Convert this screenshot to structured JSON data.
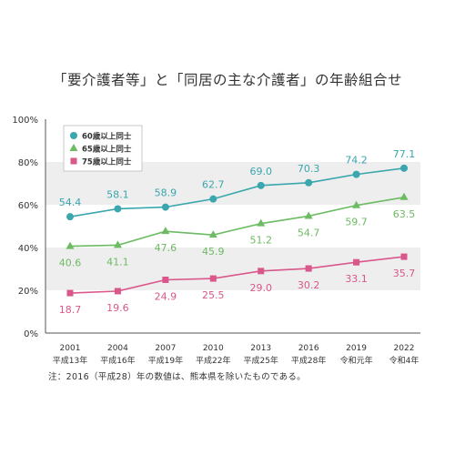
{
  "title": "「要介護者等」と「同居の主な介護者」の年齢組合せ",
  "note": "注：2016（平成28）年の数値は、熊本県を除いたものである。",
  "colors": {
    "teal": "#3aa6ad",
    "green": "#6dbb63",
    "pink": "#d9578a",
    "band": "#eeeeee"
  },
  "chart_data": {
    "type": "line",
    "x": [
      "2001",
      "2004",
      "2007",
      "2010",
      "2013",
      "2016",
      "2019",
      "2022"
    ],
    "x_sub": [
      "平成13年",
      "平成16年",
      "平成19年",
      "平成22年",
      "平成25年",
      "平成28年",
      "令和元年",
      "令和4年"
    ],
    "ylim": [
      0,
      100
    ],
    "yticks": [
      "0%",
      "20%",
      "40%",
      "60%",
      "80%",
      "100%"
    ],
    "legend_position": "top-left",
    "series": [
      {
        "name": "60歳以上同士",
        "marker": "circle",
        "color": "#3aa6ad",
        "values": [
          54.4,
          58.1,
          58.9,
          62.7,
          69.0,
          70.3,
          74.2,
          77.1
        ],
        "labels": [
          "54.4",
          "58.1",
          "58.9",
          "62.7",
          "69.0",
          "70.3",
          "74.2",
          "77.1"
        ]
      },
      {
        "name": "65歳以上同士",
        "marker": "triangle",
        "color": "#6dbb63",
        "values": [
          40.6,
          41.1,
          47.6,
          45.9,
          51.2,
          54.7,
          59.7,
          63.5
        ],
        "labels": [
          "40.6",
          "41.1",
          "47.6",
          "45.9",
          "51.2",
          "54.7",
          "59.7",
          "63.5"
        ]
      },
      {
        "name": "75歳以上同士",
        "marker": "square",
        "color": "#d9578a",
        "values": [
          18.7,
          19.6,
          24.9,
          25.5,
          29.0,
          30.2,
          33.1,
          35.7
        ],
        "labels": [
          "18.7",
          "19.6",
          "24.9",
          "25.5",
          "29.0",
          "30.2",
          "33.1",
          "35.7"
        ]
      }
    ]
  }
}
